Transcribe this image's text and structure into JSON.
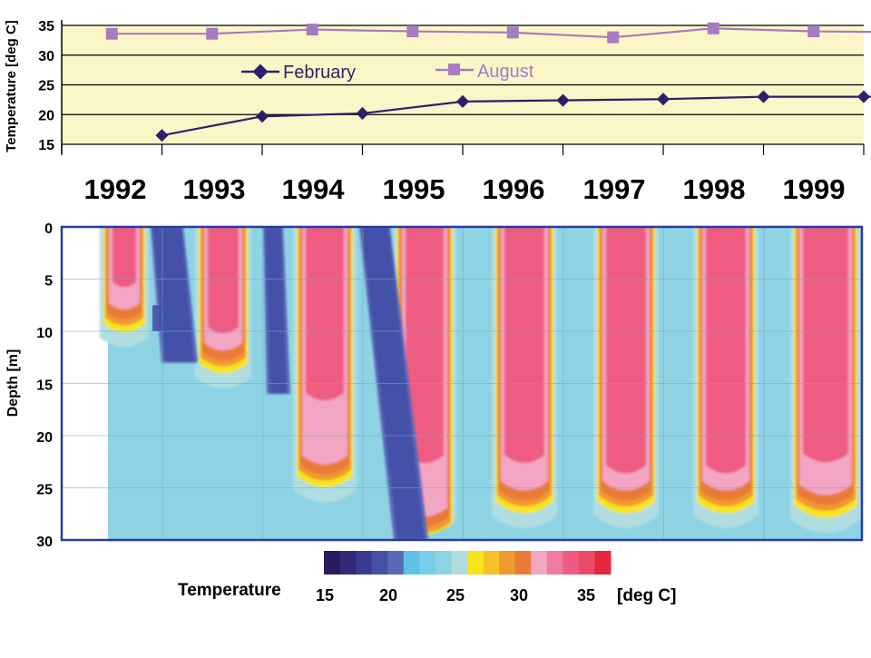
{
  "chart_data": [
    {
      "type": "line",
      "ylabel": "Temperature [deg C]",
      "ylim": [
        15,
        35
      ],
      "yticks": [
        15,
        20,
        25,
        30,
        35
      ],
      "grid": true,
      "legend_position": "top-center",
      "plot_background": "#FBF6C8",
      "series": [
        {
          "name": "February",
          "color": "#2E1F6B",
          "x": [
            1992.55,
            1993.55,
            1994.55,
            1995.55,
            1996.55,
            1997.55,
            1998.55,
            1999.55,
            2000.4
          ],
          "y": [
            16.5,
            19.7,
            20.2,
            22.2,
            22.4,
            22.6,
            23.0,
            23.0,
            23.0
          ]
        },
        {
          "name": "August",
          "color": "#A77BBF",
          "x": [
            1992.05,
            1993.05,
            1994.05,
            1995.05,
            1996.05,
            1997.05,
            1998.05,
            1999.05,
            2000.4
          ],
          "y": [
            33.6,
            33.6,
            34.3,
            34.0,
            33.8,
            33.0,
            34.5,
            34.0,
            33.8
          ]
        }
      ]
    },
    {
      "type": "heatmap",
      "ylabel": "Depth [m]",
      "yticks": [
        0,
        5,
        10,
        15,
        20,
        25,
        30
      ],
      "ylim": [
        0,
        30
      ],
      "xticks": [
        "1992",
        "1993",
        "1994",
        "1995",
        "1996",
        "1997",
        "1998",
        "1999"
      ],
      "colorbar": {
        "label": "Temperature",
        "unit": "[deg C]",
        "ticks": [
          15,
          20,
          25,
          30,
          35
        ],
        "colors": [
          "#2A1A5E",
          "#33287A",
          "#3A3A93",
          "#4451A8",
          "#5A68B8",
          "#5FC2E8",
          "#78CDE9",
          "#8ED3E4",
          "#B0DDE0",
          "#F8E41A",
          "#F6C228",
          "#F09A30",
          "#EA7A35",
          "#F2A6C3",
          "#F17AA0",
          "#EE5B82",
          "#EA4A66",
          "#E3283A"
        ]
      },
      "warm_plumes_summer": [
        {
          "year": 1992,
          "max_depth_m": 9,
          "core_depth_m": 6
        },
        {
          "year": 1993,
          "max_depth_m": 13,
          "core_depth_m": 10.5
        },
        {
          "year": 1994,
          "max_depth_m": 24,
          "core_depth_m": 17
        },
        {
          "year": 1995,
          "max_depth_m": 29,
          "core_depth_m": 23
        },
        {
          "year": 1996,
          "max_depth_m": 26.5,
          "core_depth_m": 23
        },
        {
          "year": 1997,
          "max_depth_m": 26.5,
          "core_depth_m": 24
        },
        {
          "year": 1998,
          "max_depth_m": 26.5,
          "core_depth_m": 24
        },
        {
          "year": 1999,
          "max_depth_m": 27,
          "core_depth_m": 23
        }
      ],
      "cold_plumes_winter": [
        {
          "year": 1993,
          "max_depth_m": 13
        },
        {
          "year": 1994,
          "max_depth_m": 16
        },
        {
          "year": 1995,
          "max_depth_m": 30
        }
      ]
    }
  ]
}
